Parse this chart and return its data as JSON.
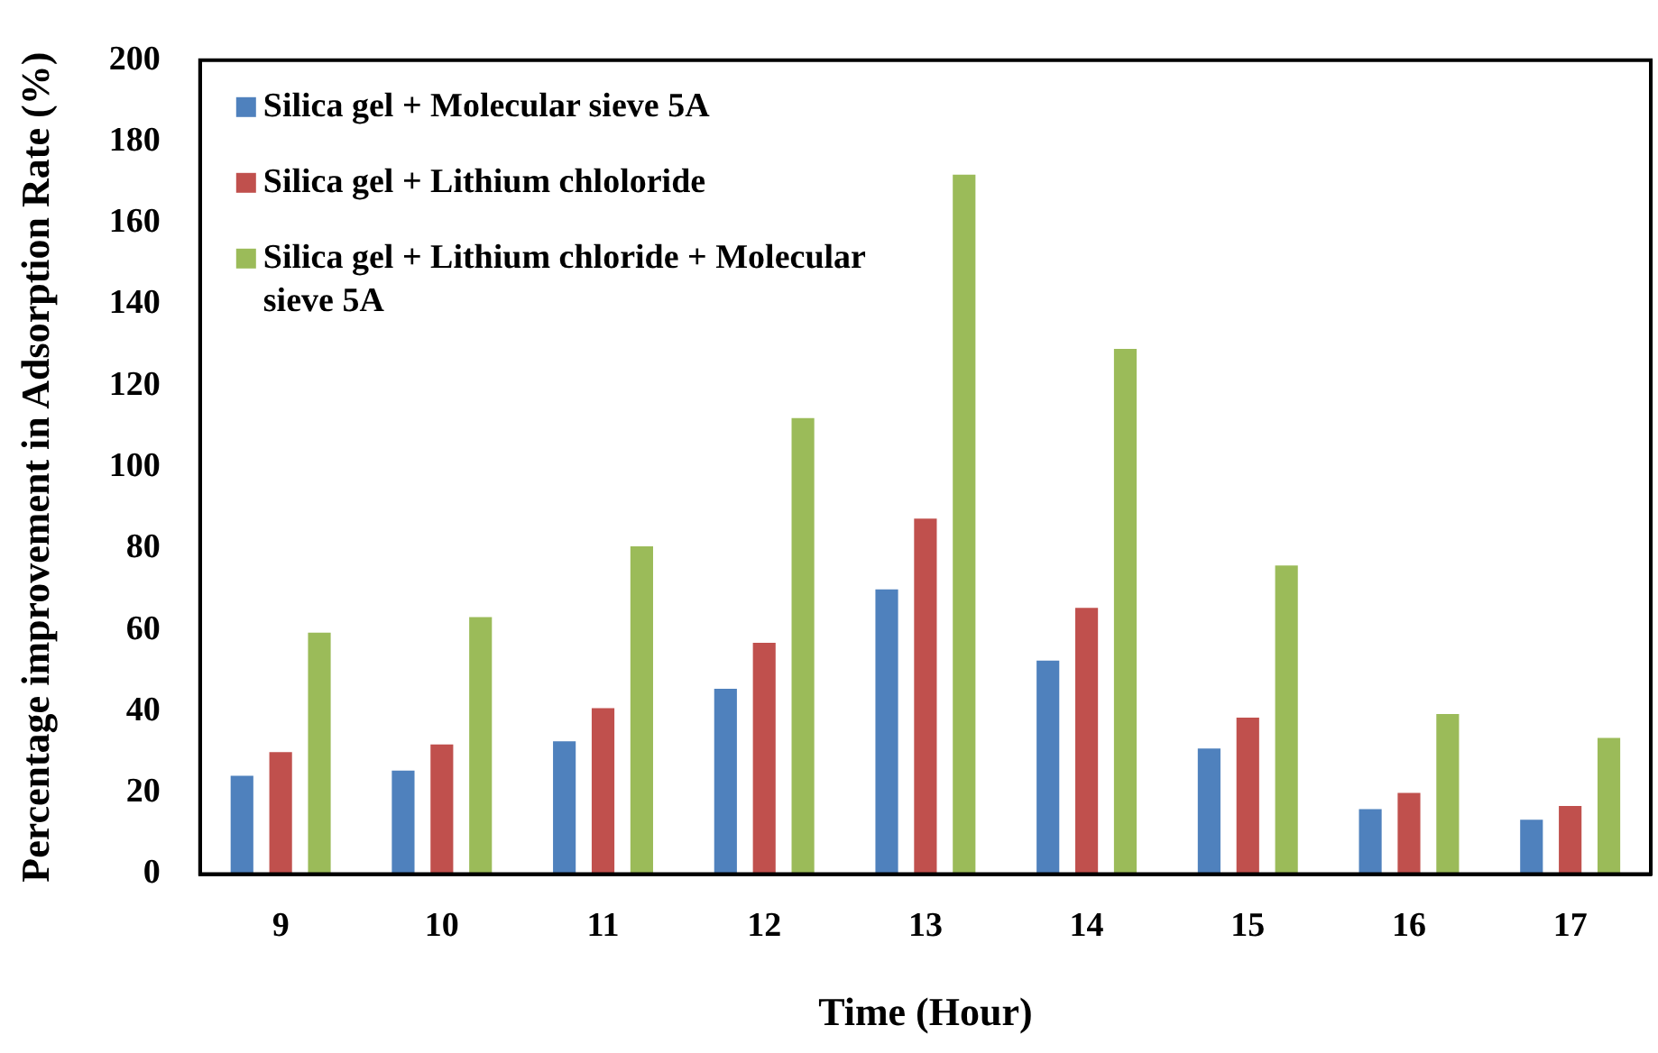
{
  "chart_data": {
    "type": "bar",
    "xlabel": "Time (Hour)",
    "ylabel": "Percentage improvement in Adsorption Rate (%)",
    "categories": [
      "9",
      "10",
      "11",
      "12",
      "13",
      "14",
      "15",
      "16",
      "17"
    ],
    "series": [
      {
        "name": "Silica gel + Molecular sieve 5A",
        "color": "#4f81bd",
        "values": [
          24.6,
          25.9,
          33.1,
          46,
          70.4,
          52.9,
          31.3,
          16.4,
          13.8
        ]
      },
      {
        "name": "Silica gel + Lithium chloloride",
        "color": "#c0504d",
        "values": [
          30.4,
          32.3,
          41.2,
          57.3,
          87.8,
          65.9,
          38.9,
          20.4,
          17.2
        ]
      },
      {
        "name": "Silica gel + Lithium chloride + Molecular sieve 5A",
        "color": "#9bbb59",
        "values": [
          59.8,
          63.6,
          81,
          112.5,
          172.3,
          129.5,
          76.3,
          39.8,
          33.9
        ]
      }
    ],
    "ylim": [
      0,
      200
    ],
    "yticks": [
      0,
      20,
      40,
      60,
      80,
      100,
      120,
      140,
      160,
      180,
      200
    ],
    "grid": false,
    "legend": "top left"
  }
}
